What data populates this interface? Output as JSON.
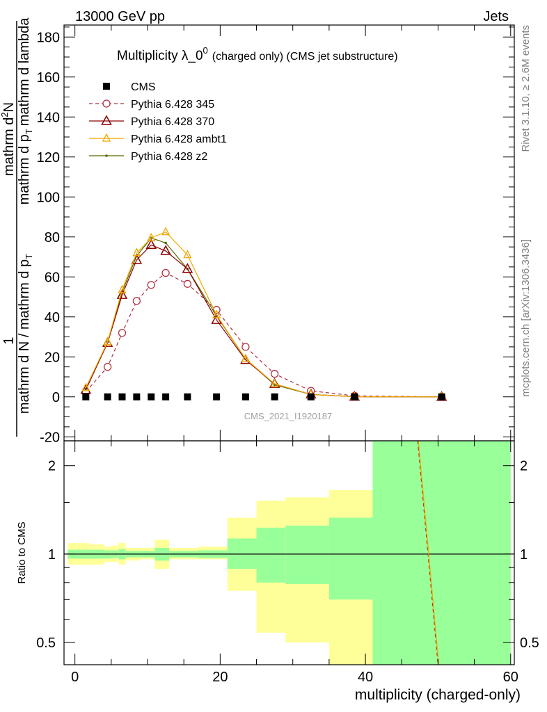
{
  "header": {
    "left": "13000 GeV pp",
    "right": "Jets"
  },
  "title_main": "Multiplicity λ_0",
  "title_sup": "0",
  "title_rest": "(charged only) (CMS jet substructure)",
  "watermark": "CMS_2021_I1920187",
  "side_top": "Rivet 3.1.10, ≥ 2.6M events",
  "side_bottom": "mcplots.cern.ch [arXiv:1306.3436]",
  "ylabel_parts": {
    "one": "1",
    "denominator": "mathrm d N / mathrm d p",
    "denominator_sub": "T",
    "numerator_top": "mathrm d",
    "numerator_sup": "2",
    "numerator_rest": "N",
    "numerator_line2": "mathrm d p",
    "numerator_line2_sub": "T",
    "numerator_line2_rest": "mathrm d lambda"
  },
  "ratio_ylabel": "Ratio to CMS",
  "xlabel": "multiplicity (charged-only)",
  "colors": {
    "cms": "#000000",
    "p345": "#b03040",
    "p370": "#8b0000",
    "ambt1": "#f0a800",
    "z2": "#556b00",
    "band_inner": "#99ff99",
    "band_outer": "#ffff99"
  },
  "chart_data": {
    "type": "line",
    "main_panel": {
      "xlim": [
        -1.5,
        60.5
      ],
      "ylim": [
        -22,
        186
      ],
      "y_ticks": [
        -20,
        0,
        20,
        40,
        60,
        80,
        100,
        120,
        140,
        160,
        180
      ],
      "x_ticks": [
        0,
        20,
        40,
        60
      ],
      "legend_position": "top-left",
      "series": [
        {
          "name": "CMS",
          "style": "square",
          "x": [
            1.5,
            4.5,
            6.5,
            8.5,
            10.5,
            12.5,
            15.5,
            19.5,
            23.5,
            27.5,
            32.5,
            38.5,
            50.5
          ],
          "y": [
            0,
            0,
            0,
            0,
            0,
            0,
            0,
            0,
            0,
            0,
            0,
            0,
            0
          ]
        },
        {
          "name": "Pythia 6.428 345",
          "style": "circle-dashed",
          "x": [
            1.5,
            4.5,
            6.5,
            8.5,
            10.5,
            12.5,
            15.5,
            19.5,
            23.5,
            27.5,
            32.5,
            38.5,
            50.5
          ],
          "y": [
            2.5,
            15,
            32,
            48,
            56,
            62,
            56.5,
            43.5,
            25,
            11.5,
            3,
            0.5,
            0
          ]
        },
        {
          "name": "Pythia 6.428 370",
          "style": "triangle",
          "x": [
            1.5,
            4.5,
            6.5,
            8.5,
            10.5,
            12.5,
            15.5,
            19.5,
            23.5,
            27.5,
            32.5,
            38.5,
            50.5
          ],
          "y": [
            3.5,
            27,
            51,
            68.5,
            76,
            73,
            64,
            38.5,
            18.5,
            6.5,
            1.2,
            0.1,
            0
          ]
        },
        {
          "name": "Pythia 6.428 ambt1",
          "style": "triangle-small",
          "x": [
            1.5,
            4.5,
            6.5,
            8.5,
            10.5,
            12.5,
            15.5,
            19.5,
            23.5,
            27.5,
            32.5,
            38.5,
            50.5
          ],
          "y": [
            4.5,
            27.5,
            53.5,
            72,
            79.5,
            82.5,
            71,
            41,
            19,
            6.5,
            1.2,
            0.1,
            0
          ]
        },
        {
          "name": "Pythia 6.428 z2",
          "style": "dot",
          "x": [
            1.5,
            4.5,
            6.5,
            8.5,
            10.5,
            12.5,
            15.5,
            19.5,
            23.5,
            27.5,
            32.5,
            38.5,
            50.5
          ],
          "y": [
            4,
            27.5,
            52.5,
            70.5,
            79.5,
            77,
            64,
            40.5,
            19,
            6,
            1.2,
            0.1,
            0
          ]
        }
      ]
    },
    "ratio_panel": {
      "ylim": [
        0.42,
        2.43
      ],
      "y_ticks": [
        0.5,
        1,
        2
      ],
      "scale": "log",
      "reference": 1,
      "bands": [
        {
          "x0": -1,
          "x1": 2,
          "inner": [
            0.965,
            1.035
          ],
          "outer": [
            0.92,
            1.09
          ]
        },
        {
          "x0": 2,
          "x1": 4,
          "inner": [
            0.965,
            1.035
          ],
          "outer": [
            0.92,
            1.08
          ]
        },
        {
          "x0": 4,
          "x1": 5,
          "inner": [
            0.965,
            1.03
          ],
          "outer": [
            0.94,
            1.06
          ]
        },
        {
          "x0": 5,
          "x1": 6,
          "inner": [
            0.97,
            1.03
          ],
          "outer": [
            0.94,
            1.07
          ]
        },
        {
          "x0": 6,
          "x1": 7,
          "inner": [
            0.96,
            1.04
          ],
          "outer": [
            0.92,
            1.09
          ]
        },
        {
          "x0": 7,
          "x1": 9,
          "inner": [
            0.975,
            1.025
          ],
          "outer": [
            0.95,
            1.05
          ]
        },
        {
          "x0": 9,
          "x1": 11,
          "inner": [
            0.975,
            1.025
          ],
          "outer": [
            0.96,
            1.05
          ]
        },
        {
          "x0": 11,
          "x1": 13,
          "inner": [
            0.95,
            1.05
          ],
          "outer": [
            0.89,
            1.12
          ]
        },
        {
          "x0": 13,
          "x1": 17,
          "inner": [
            0.975,
            1.025
          ],
          "outer": [
            0.96,
            1.05
          ]
        },
        {
          "x0": 17,
          "x1": 21,
          "inner": [
            0.97,
            1.03
          ],
          "outer": [
            0.96,
            1.06
          ]
        },
        {
          "x0": 21,
          "x1": 25,
          "inner": [
            0.89,
            1.13
          ],
          "outer": [
            0.75,
            1.33
          ]
        },
        {
          "x0": 25,
          "x1": 29,
          "inner": [
            0.8,
            1.23
          ],
          "outer": [
            0.54,
            1.52
          ]
        },
        {
          "x0": 29,
          "x1": 35,
          "inner": [
            0.79,
            1.25
          ],
          "outer": [
            0.5,
            1.56
          ]
        },
        {
          "x0": 35,
          "x1": 41,
          "inner": [
            0.7,
            1.33
          ],
          "outer": [
            0.3,
            1.65
          ]
        },
        {
          "x0": 41,
          "x1": 60,
          "inner": [
            0.3,
            2.43
          ],
          "outer": [
            0.3,
            2.43
          ]
        }
      ],
      "curves": [
        {
          "series": "Pythia 6.428 345",
          "x": [
            47.2,
            50.0
          ],
          "y": [
            2.43,
            0.42
          ]
        },
        {
          "series": "Pythia 6.428 ambt1",
          "x": [
            47.3,
            50.1
          ],
          "y": [
            2.43,
            0.42
          ]
        }
      ]
    }
  }
}
